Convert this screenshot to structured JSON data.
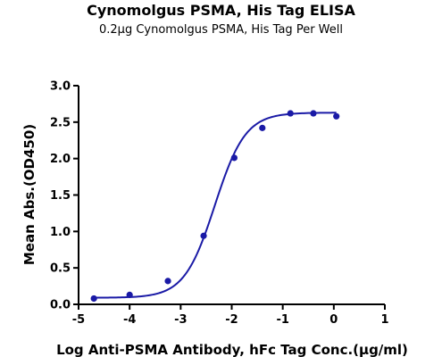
{
  "chart_data": {
    "type": "line",
    "title": "Cynomolgus PSMA, His Tag ELISA",
    "subtitle": "0.2μg Cynomolgus PSMA, His Tag Per Well",
    "xlabel": "Log Anti-PSMA Antibody, hFc Tag Conc.(μg/ml)",
    "ylabel": "Mean Abs.(OD450)",
    "xlim": [
      -5,
      1
    ],
    "ylim": [
      0,
      3.0
    ],
    "x_ticks": [
      "-5",
      "-4",
      "-3",
      "-2",
      "-1",
      "0",
      "1"
    ],
    "y_ticks": [
      "0.0",
      "0.5",
      "1.0",
      "1.5",
      "2.0",
      "2.5",
      "3.0"
    ],
    "x_tick_values": [
      -5,
      -4,
      -3,
      -2,
      -1,
      0,
      1
    ],
    "y_tick_values": [
      0,
      0.5,
      1.0,
      1.5,
      2.0,
      2.5,
      3.0
    ],
    "grid": false,
    "color": "#1a1aa6",
    "points": [
      {
        "x": -4.7,
        "y": 0.08
      },
      {
        "x": -4.0,
        "y": 0.13
      },
      {
        "x": -3.25,
        "y": 0.32
      },
      {
        "x": -2.55,
        "y": 0.94
      },
      {
        "x": -1.95,
        "y": 2.01
      },
      {
        "x": -1.4,
        "y": 2.42
      },
      {
        "x": -0.85,
        "y": 2.62
      },
      {
        "x": -0.4,
        "y": 2.62
      },
      {
        "x": 0.05,
        "y": 2.58
      }
    ],
    "fit": {
      "model": "4PL",
      "bottom": 0.09,
      "top": 2.63,
      "logEC50": -2.33,
      "hill": 1.45,
      "x_range": [
        -4.7,
        0.05
      ]
    }
  }
}
